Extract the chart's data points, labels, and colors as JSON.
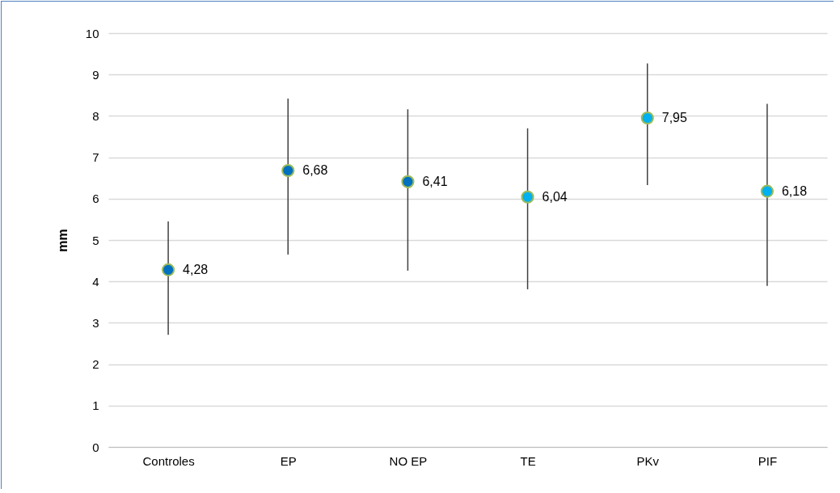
{
  "chart_data": {
    "type": "scatter",
    "ylabel": "mm",
    "categories": [
      "Controles",
      "EP",
      "NO EP",
      "TE",
      "PKv",
      "PIF"
    ],
    "values": [
      4.28,
      6.68,
      6.41,
      6.04,
      7.95,
      6.18
    ],
    "value_labels": [
      "4,28",
      "6,68",
      "6,41",
      "6,04",
      "7,95",
      "6,18"
    ],
    "errors": [
      [
        2.71,
        5.45
      ],
      [
        4.65,
        8.42
      ],
      [
        4.26,
        8.16
      ],
      [
        3.81,
        7.7
      ],
      [
        6.33,
        9.27
      ],
      [
        3.89,
        8.29
      ]
    ],
    "colors": [
      "#0070c0",
      "#0070c0",
      "#0070c0",
      "#00b0f0",
      "#00b0f0",
      "#00b0f0"
    ],
    "ylim": [
      0,
      10
    ],
    "yticks": [
      0,
      1,
      2,
      3,
      4,
      5,
      6,
      7,
      8,
      9,
      10
    ],
    "grid": "y",
    "marker": "circle"
  }
}
